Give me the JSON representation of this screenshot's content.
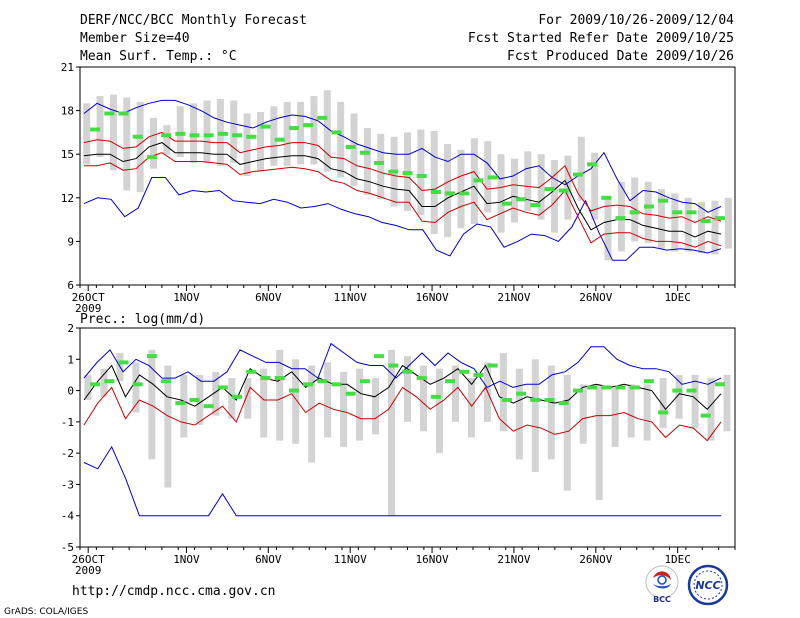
{
  "header": {
    "left": [
      "DERF/NCC/BCC Monthly Forecast",
      "Member Size=40",
      "Mean Surf. Temp.: °C"
    ],
    "right": [
      "For 2009/10/26-2009/12/04",
      "Fcst Started Refer Date 2009/10/25",
      "Fcst Produced Date 2009/10/26"
    ]
  },
  "footer": {
    "url": "http://cmdp.ncc.cma.gov.cn",
    "credit": "GrADS: COLA/IGES",
    "logo_bcc": "BCC",
    "logo_ncc": "NCC"
  },
  "colors": {
    "envelope": "#0000cc",
    "spread": "#cc0000",
    "mean": "#000000",
    "member_box": "#d3d3d3",
    "marker": "#44dd44"
  },
  "chart_data": [
    {
      "type": "line",
      "title": "Mean Surf. Temp.: °C",
      "days": 40,
      "x_tick_labels": [
        "26OCT",
        "1NOV",
        "6NOV",
        "11NOV",
        "16NOV",
        "21NOV",
        "26NOV",
        "1DEC"
      ],
      "x_year_label": "2009",
      "ylim": [
        6,
        21
      ],
      "y_ticks": [
        6,
        9,
        12,
        15,
        18,
        21
      ],
      "series": {
        "max": [
          17.8,
          18.5,
          18.1,
          17.8,
          18.2,
          18.5,
          18.7,
          18.7,
          18.4,
          18.0,
          17.5,
          17.2,
          17.0,
          16.8,
          17.2,
          17.5,
          17.7,
          17.6,
          17.3,
          16.6,
          16.2,
          15.7,
          15.4,
          15.1,
          15.0,
          15.0,
          15.4,
          14.8,
          14.5,
          15.0,
          15.0,
          14.4,
          13.3,
          13.5,
          14.0,
          14.2,
          13.4,
          12.9,
          13.5,
          14.0,
          15.1,
          13.3,
          11.8,
          12.5,
          12.4,
          12.0,
          11.7,
          11.6,
          11.0,
          11.4
        ],
        "upper": [
          15.8,
          16.0,
          15.9,
          15.4,
          15.5,
          16.2,
          16.5,
          15.9,
          15.9,
          15.9,
          15.8,
          15.8,
          15.1,
          15.3,
          15.5,
          15.6,
          15.8,
          15.8,
          15.6,
          14.8,
          14.7,
          14.2,
          14.0,
          13.7,
          13.5,
          13.4,
          12.5,
          12.6,
          13.1,
          13.5,
          13.8,
          12.6,
          12.7,
          12.9,
          12.8,
          12.7,
          13.4,
          14.2,
          12.3,
          11.1,
          11.4,
          11.5,
          11.4,
          10.9,
          10.8,
          10.6,
          10.7,
          10.3,
          10.7,
          10.4
        ],
        "mean": [
          14.9,
          15.0,
          15.0,
          14.5,
          14.7,
          15.5,
          15.8,
          15.1,
          15.1,
          15.1,
          15.0,
          15.0,
          14.3,
          14.5,
          14.7,
          14.8,
          14.9,
          14.9,
          14.7,
          14.0,
          13.8,
          13.3,
          13.1,
          12.8,
          12.6,
          12.5,
          11.4,
          11.4,
          12.0,
          12.4,
          12.8,
          11.6,
          11.7,
          12.1,
          11.9,
          11.7,
          12.4,
          13.2,
          11.3,
          9.8,
          10.3,
          10.5,
          10.5,
          10.1,
          9.9,
          9.7,
          9.7,
          9.3,
          9.7,
          9.5
        ],
        "lower": [
          14.2,
          14.2,
          14.4,
          13.9,
          14.0,
          14.8,
          15.1,
          14.5,
          14.5,
          14.5,
          14.4,
          14.3,
          13.6,
          13.8,
          13.9,
          14.0,
          14.1,
          14.0,
          13.8,
          13.2,
          13.0,
          12.5,
          12.3,
          12.0,
          11.7,
          11.7,
          10.4,
          10.3,
          11.0,
          11.4,
          11.7,
          10.5,
          10.9,
          11.3,
          11.0,
          10.8,
          11.5,
          12.5,
          10.7,
          8.9,
          9.5,
          9.6,
          9.6,
          9.2,
          9.0,
          9.0,
          8.9,
          8.6,
          9.0,
          8.7
        ],
        "min": [
          11.6,
          12.0,
          11.9,
          10.7,
          11.3,
          13.4,
          13.4,
          12.2,
          12.5,
          12.4,
          12.5,
          11.8,
          11.7,
          11.6,
          11.9,
          11.7,
          11.3,
          11.4,
          11.6,
          11.2,
          10.9,
          10.7,
          10.3,
          10.1,
          9.8,
          9.8,
          8.4,
          8.0,
          9.5,
          10.2,
          10.0,
          8.6,
          9.0,
          9.5,
          9.4,
          9.0,
          10.0,
          11.8,
          9.6,
          7.7,
          7.7,
          8.6,
          8.6,
          8.4,
          8.5,
          8.4,
          8.2,
          8.5
        ],
        "box_high": [
          18.5,
          19.0,
          19.1,
          18.9,
          18.6,
          17.5,
          17.0,
          18.3,
          18.5,
          18.7,
          18.8,
          18.7,
          17.8,
          17.9,
          18.3,
          18.6,
          18.6,
          19.0,
          19.4,
          18.6,
          17.8,
          16.8,
          16.4,
          16.2,
          16.5,
          16.7,
          16.6,
          15.7,
          15.3,
          16.1,
          15.9,
          15.0,
          14.7,
          15.2,
          15.0,
          14.6,
          14.9,
          16.2,
          15.1,
          12.1,
          13.1,
          13.4,
          13.1,
          12.6,
          12.3,
          12.0,
          11.7,
          11.8,
          12.0
        ],
        "box_low": [
          14.3,
          14.8,
          13.9,
          12.5,
          12.4,
          14.0,
          15.0,
          14.8,
          14.4,
          14.4,
          14.2,
          14.4,
          13.5,
          13.8,
          14.2,
          14.2,
          14.3,
          14.3,
          13.8,
          13.4,
          12.8,
          12.2,
          11.9,
          11.4,
          11.1,
          10.8,
          9.5,
          9.3,
          9.9,
          10.2,
          11.0,
          9.6,
          10.3,
          11.1,
          10.5,
          9.6,
          10.5,
          11.8,
          10.5,
          7.7,
          8.3,
          9.0,
          8.9,
          8.5,
          8.3,
          8.3,
          8.2,
          8.1,
          8.5
        ],
        "marker": [
          16.7,
          17.8,
          17.8,
          16.2,
          14.8,
          16.3,
          16.4,
          16.3,
          16.3,
          16.4,
          16.3,
          16.2,
          16.9,
          16.0,
          16.8,
          17.0,
          17.5,
          16.5,
          15.5,
          15.1,
          14.4,
          13.8,
          13.7,
          13.5,
          12.4,
          12.3,
          12.3,
          13.2,
          13.4,
          11.6,
          11.9,
          11.5,
          12.6,
          12.5,
          13.6,
          14.3,
          12.0,
          10.6,
          11.0,
          11.4,
          11.8,
          11.0,
          11.0,
          10.4,
          10.6
        ]
      }
    },
    {
      "type": "line",
      "title": "Prec.: log(mm/d)",
      "days": 40,
      "x_tick_labels": [
        "26OCT",
        "1NOV",
        "6NOV",
        "11NOV",
        "16NOV",
        "21NOV",
        "26NOV",
        "1DEC"
      ],
      "x_year_label": "2009",
      "ylim": [
        -5,
        2
      ],
      "y_ticks": [
        -5,
        -4,
        -3,
        -2,
        -1,
        0,
        1,
        2
      ],
      "series": {
        "max": [
          0.4,
          0.9,
          1.3,
          0.6,
          1.0,
          0.8,
          0.4,
          0.4,
          0.6,
          0.3,
          0.3,
          0.6,
          1.3,
          1.1,
          0.9,
          0.9,
          0.7,
          0.7,
          0.4,
          1.5,
          1.2,
          0.9,
          0.8,
          0.8,
          0.4,
          0.8,
          1.2,
          0.8,
          1.2,
          0.9,
          0.7,
          0.1,
          0.3,
          0.1,
          0.2,
          0.2,
          0.5,
          0.6,
          0.9,
          1.4,
          1.4,
          1.0,
          0.8,
          0.7,
          0.7,
          0.6,
          0.2,
          0.3,
          0.2,
          0.4
        ],
        "mean": [
          -0.3,
          0.3,
          0.8,
          -0.2,
          0.5,
          0.2,
          -0.2,
          -0.3,
          -0.5,
          -0.2,
          0.1,
          -0.3,
          0.7,
          0.4,
          0.3,
          0.6,
          0.1,
          0.4,
          0.2,
          0.2,
          -0.1,
          -0.2,
          0.1,
          0.8,
          0.5,
          0.2,
          0.4,
          0.7,
          0.2,
          0.8,
          -0.2,
          -0.4,
          -0.2,
          -0.3,
          -0.4,
          -0.3,
          0.1,
          0.2,
          0.1,
          0.2,
          0.1,
          0.0,
          -0.6,
          -0.1,
          -0.2,
          -0.6,
          -0.1
        ],
        "lower": [
          -1.1,
          -0.4,
          0.1,
          -0.9,
          -0.3,
          -0.5,
          -0.8,
          -1.0,
          -1.1,
          -0.8,
          -0.5,
          -1.0,
          0.1,
          -0.3,
          -0.3,
          -0.1,
          -0.7,
          -0.4,
          -0.6,
          -0.7,
          -0.9,
          -0.9,
          -0.6,
          0.1,
          -0.2,
          -0.6,
          -0.3,
          0.1,
          -0.5,
          0.1,
          -0.9,
          -1.3,
          -1.1,
          -1.2,
          -1.4,
          -1.3,
          -0.9,
          -0.8,
          -0.8,
          -0.7,
          -0.9,
          -1.0,
          -1.5,
          -1.1,
          -1.2,
          -1.6,
          -1.0
        ],
        "min": [
          -2.3,
          -2.5,
          -1.8,
          -2.8,
          -4.0,
          -4.0,
          -4.0,
          -4.0,
          -4.0,
          -4.0,
          -3.3,
          -4.0,
          -4.0,
          -4.0,
          -4.0,
          -4.0,
          -4.0,
          -4.0,
          -4.0,
          -4.0,
          -4.0,
          -4.0,
          -4.0,
          -4.0,
          -4.0,
          -4.0,
          -4.0,
          -4.0,
          -4.0,
          -4.0,
          -4.0,
          -4.0,
          -4.0,
          -4.0,
          -4.0,
          -4.0,
          -4.0,
          -4.0,
          -4.0,
          -4.0,
          -4.0,
          -4.0,
          -4.0,
          -4.0,
          -4.0,
          -4.0,
          -4.0
        ],
        "box_high": [
          0.5,
          0.7,
          1.2,
          0.9,
          1.3,
          0.8,
          0.5,
          0.5,
          0.6,
          0.4,
          0.4,
          0.7,
          1.3,
          1.0,
          0.8,
          0.9,
          0.6,
          0.7,
          0.4,
          1.3,
          1.1,
          0.8,
          0.7,
          0.8,
          0.4,
          0.9,
          1.2,
          0.7,
          1.0,
          0.8,
          0.5,
          0.2,
          0.2,
          0.1,
          0.2,
          0.2,
          0.4,
          0.5,
          0.5,
          0.4,
          0.5,
          0.4,
          0.2,
          0.4,
          0.4,
          0.1,
          0.5
        ],
        "box_low": [
          -0.3,
          -0.2,
          0.3,
          -0.7,
          -2.2,
          -3.1,
          -1.5,
          -1.1,
          -0.8,
          -0.9,
          -0.9,
          -1.5,
          -1.6,
          -1.7,
          -2.3,
          -1.5,
          -1.8,
          -1.6,
          -1.4,
          -4.0,
          -1.0,
          -1.3,
          -2.0,
          -1.0,
          -1.5,
          -1.0,
          -1.3,
          -2.2,
          -2.6,
          -2.2,
          -3.2,
          -1.7,
          -3.5,
          -1.8,
          -1.5,
          -1.6,
          -1.2,
          -0.9,
          -1.2,
          -1.6,
          -1.3
        ],
        "marker": [
          0.2,
          0.3,
          0.9,
          0.2,
          1.1,
          0.3,
          -0.4,
          -0.3,
          -0.5,
          0.1,
          -0.2,
          0.6,
          0.4,
          0.4,
          0.0,
          0.2,
          0.3,
          0.2,
          -0.1,
          0.3,
          1.1,
          0.8,
          0.6,
          0.4,
          -0.2,
          0.3,
          0.6,
          0.5,
          0.8,
          -0.3,
          -0.1,
          -0.3,
          -0.3,
          -0.4,
          0.0,
          0.1,
          0.1,
          0.1,
          0.1,
          0.3,
          -0.7,
          0.0,
          0.0,
          -0.8,
          0.2
        ]
      }
    }
  ]
}
